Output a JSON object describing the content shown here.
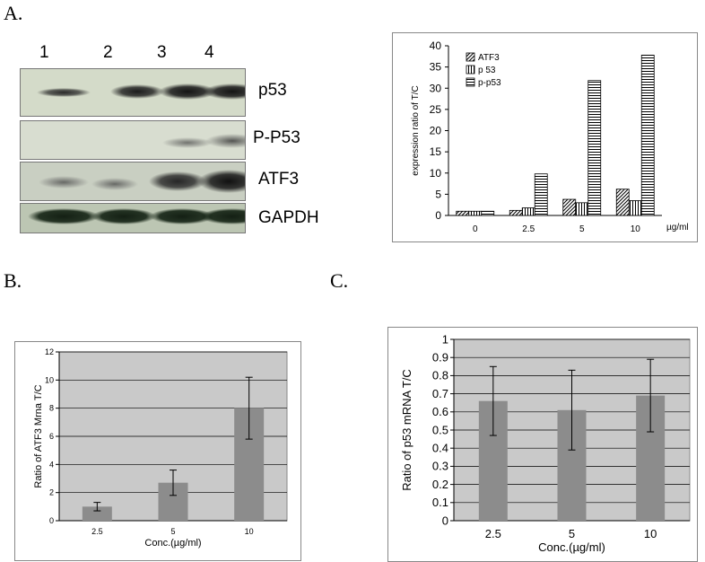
{
  "panels": {
    "a": "A.",
    "b": "B.",
    "c": "C."
  },
  "blot": {
    "lanes": [
      "1",
      "2",
      "3",
      "4"
    ],
    "labels": [
      "p53",
      "P-P53",
      "ATF3",
      "GAPDH"
    ]
  },
  "chart_data": [
    {
      "type": "bar",
      "panel": "A",
      "categories": [
        "0",
        "2.5",
        "5",
        "10"
      ],
      "xlabel_unit": "µg/ml",
      "ylabel": "expression ratio of T/C",
      "ylim": [
        0,
        40
      ],
      "yticks": [
        0,
        5,
        10,
        15,
        20,
        25,
        30,
        35,
        40
      ],
      "legend": "top-left",
      "series": [
        {
          "name": "ATF3",
          "values": [
            1,
            1.2,
            3.8,
            6.2
          ],
          "pattern": "diagonal"
        },
        {
          "name": "p 53",
          "values": [
            1,
            1.8,
            3.0,
            3.5
          ],
          "pattern": "vertical"
        },
        {
          "name": "p-p53",
          "values": [
            1,
            9.8,
            31.8,
            37.8
          ],
          "pattern": "horizontal"
        }
      ]
    },
    {
      "type": "bar",
      "panel": "B",
      "categories": [
        "2.5",
        "5",
        "10"
      ],
      "values": [
        1.0,
        2.7,
        8.0
      ],
      "error": [
        0.3,
        0.9,
        2.2
      ],
      "xlabel": "Conc.(µg/ml)",
      "ylabel": "Ratio of ATF3 Mrna T/C",
      "ylim": [
        0,
        12
      ],
      "yticks": [
        0,
        2,
        4,
        6,
        8,
        10,
        12
      ],
      "grid": true
    },
    {
      "type": "bar",
      "panel": "C",
      "categories": [
        "2.5",
        "5",
        "10"
      ],
      "values": [
        0.66,
        0.61,
        0.69
      ],
      "error": [
        0.19,
        0.22,
        0.2
      ],
      "xlabel": "Conc.(µg/ml)",
      "ylabel": "Ratio of p53 mRNA T/C",
      "ylim": [
        0,
        1
      ],
      "yticks": [
        0,
        0.1,
        0.2,
        0.3,
        0.4,
        0.5,
        0.6,
        0.7,
        0.8,
        0.9,
        1
      ],
      "grid": true
    }
  ]
}
